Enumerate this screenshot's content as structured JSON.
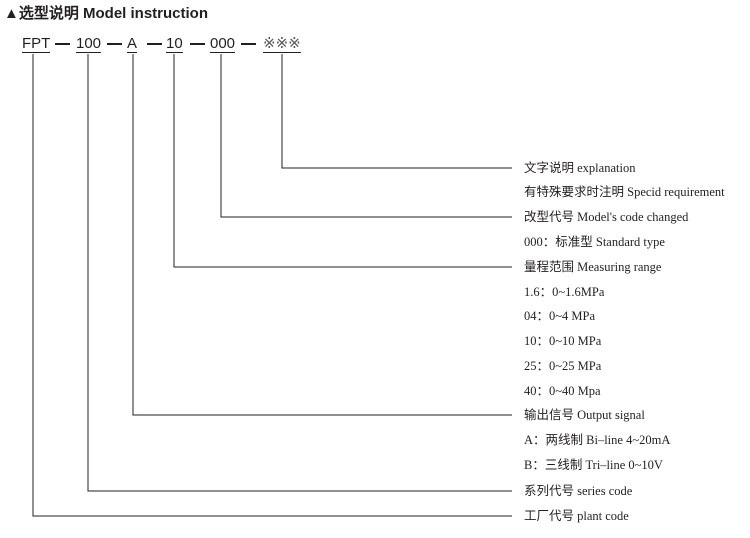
{
  "title": "▲选型说明  Model instruction",
  "code_parts": [
    "FPT",
    "100",
    "A",
    "10",
    "000",
    "※※※"
  ],
  "labels": [
    "文字说明 explanation",
    "有特殊要求时注明 Specid requirement",
    "改型代号  Model's code changed",
    "000：标准型  Standard type",
    "量程范围  Measuring range",
    "1.6：0~1.6MPa",
    "04：0~4 MPa",
    "10：0~10 MPa",
    "25：0~25 MPa",
    "40：0~40 Mpa",
    "输出信号 Output signal",
    "A：两线制 Bi–line 4~20mA",
    "B：三线制 Tri–line 0~10V",
    "系列代号 series code",
    "工厂代号 plant code"
  ]
}
